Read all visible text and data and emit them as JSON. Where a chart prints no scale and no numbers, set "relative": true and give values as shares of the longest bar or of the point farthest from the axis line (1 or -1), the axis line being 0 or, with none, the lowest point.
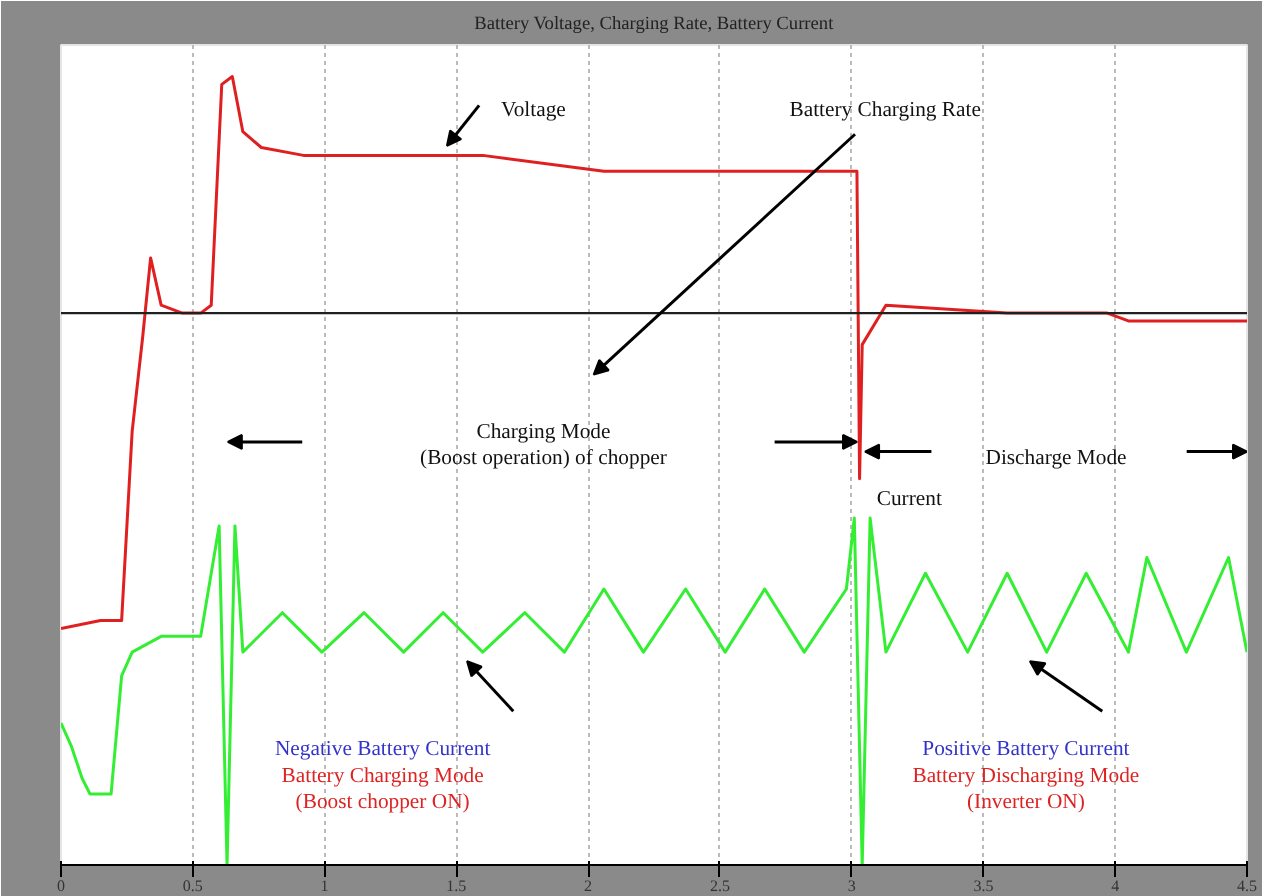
{
  "chart_data": {
    "type": "line",
    "title": "Battery Voltage, Charging Rate, Battery Current",
    "relative": true,
    "xlim": [
      0,
      4.5
    ],
    "xticks": [
      0,
      0.5,
      1,
      1.5,
      2,
      2.5,
      3,
      3.5,
      4,
      4.5
    ],
    "grid": "x",
    "ref_lines": [
      {
        "axis": "y",
        "value": 0.7,
        "color": "#202020"
      }
    ],
    "annotations": [
      "Voltage",
      "Battery Charging Rate",
      "Charging Mode\n(Boost operation) of chopper",
      "Discharge Mode",
      "Current",
      "Negative Battery Current",
      "Battery Charging Mode",
      "(Boost chopper ON)",
      "Positive Battery Current",
      "Battery Discharging Mode",
      "(Inverter ON)"
    ],
    "series": [
      {
        "color": "#e02020",
        "x": [
          0,
          0.15,
          0.23,
          0.27,
          0.31,
          0.34,
          0.38,
          0.46,
          0.53,
          0.57,
          0.61,
          0.65,
          0.69,
          0.76,
          0.92,
          1.3,
          1.6,
          2.06,
          2.52,
          3.02,
          3.03,
          3.04,
          3.13,
          3.59,
          3.97,
          4.05,
          4.5
        ],
        "values": [
          0.3,
          0.31,
          0.31,
          0.55,
          0.67,
          0.77,
          0.71,
          0.7,
          0.7,
          0.71,
          0.99,
          1,
          0.93,
          0.91,
          0.9,
          0.9,
          0.9,
          0.88,
          0.88,
          0.88,
          0.49,
          0.66,
          0.71,
          0.7,
          0.7,
          0.69,
          0.69
        ]
      },
      {
        "color": "#33ee33",
        "x": [
          0,
          0.04,
          0.08,
          0.11,
          0.19,
          0.23,
          0.27,
          0.38,
          0.53,
          0.6,
          0.63,
          0.66,
          0.69,
          0.84,
          0.99,
          1.15,
          1.3,
          1.45,
          1.6,
          1.76,
          1.91,
          2.06,
          2.21,
          2.37,
          2.52,
          2.67,
          2.82,
          2.98,
          3.01,
          3.04,
          3.07,
          3.13,
          3.28,
          3.44,
          3.59,
          3.74,
          3.89,
          4.05,
          4.12,
          4.27,
          4.43,
          4.5
        ],
        "values": [
          0.18,
          0.15,
          0.11,
          0.09,
          0.09,
          0.24,
          0.27,
          0.29,
          0.29,
          0.43,
          0,
          0.43,
          0.27,
          0.32,
          0.27,
          0.32,
          0.27,
          0.32,
          0.27,
          0.32,
          0.27,
          0.35,
          0.27,
          0.35,
          0.27,
          0.35,
          0.27,
          0.35,
          0.44,
          0,
          0.44,
          0.27,
          0.37,
          0.27,
          0.37,
          0.27,
          0.37,
          0.27,
          0.39,
          0.27,
          0.39,
          0.27
        ]
      }
    ]
  }
}
